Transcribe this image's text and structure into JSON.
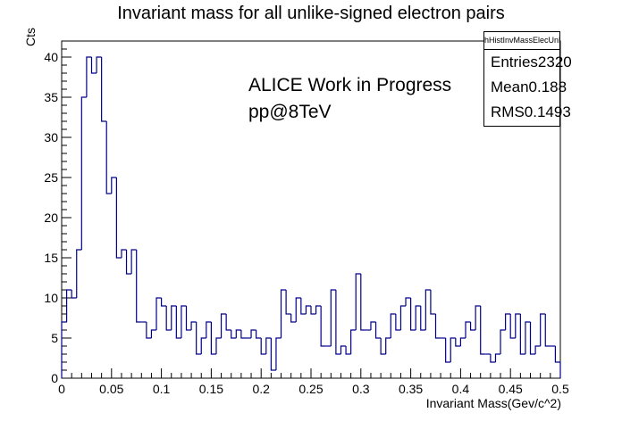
{
  "chart_data": {
    "type": "histogram-step",
    "title": "Invariant mass for all unlike-signed electron pairs",
    "xlabel": "Invariant Mass(Gev/c^2)",
    "ylabel": "Cts",
    "xlim": [
      0,
      0.5
    ],
    "ylim": [
      0,
      42
    ],
    "bin_width": 0.005,
    "x_ticks": [
      "0",
      "0.05",
      "0.1",
      "0.15",
      "0.2",
      "0.25",
      "0.3",
      "0.35",
      "0.4",
      "0.45",
      "0.5"
    ],
    "y_ticks": [
      "0",
      "5",
      "10",
      "15",
      "20",
      "25",
      "30",
      "35",
      "40"
    ],
    "line_color": "#00008b",
    "values": [
      7,
      11,
      10,
      16,
      35,
      40,
      38,
      40,
      32,
      23,
      25,
      15,
      16,
      13,
      16,
      7,
      7,
      5,
      6,
      10,
      9,
      6,
      9,
      5,
      9,
      6,
      7,
      3,
      5,
      7,
      3,
      5,
      8,
      6,
      5,
      6,
      5,
      5,
      6,
      5,
      3,
      5,
      1,
      5,
      11,
      8,
      7,
      10,
      8,
      9,
      8,
      9,
      4,
      4,
      11,
      3,
      4,
      3,
      6,
      13,
      6,
      6,
      7,
      5,
      3,
      5,
      8,
      6,
      9,
      10,
      6,
      9,
      6,
      11,
      8,
      5,
      5,
      2,
      5,
      4,
      5,
      7,
      6,
      9,
      3,
      3,
      2,
      3,
      6,
      8,
      5,
      8,
      3,
      7,
      3,
      4,
      8,
      4,
      4,
      2
    ]
  },
  "stats": {
    "name": "hHistInvMassElecUnLike_EMCEGA",
    "rows": [
      {
        "label": "Entries",
        "value": "2320"
      },
      {
        "label": "Mean",
        "value": "0.188"
      },
      {
        "label": "RMS",
        "value": "0.1493"
      }
    ]
  },
  "annotations": [
    "ALICE Work in Progress",
    "pp@8TeV"
  ]
}
